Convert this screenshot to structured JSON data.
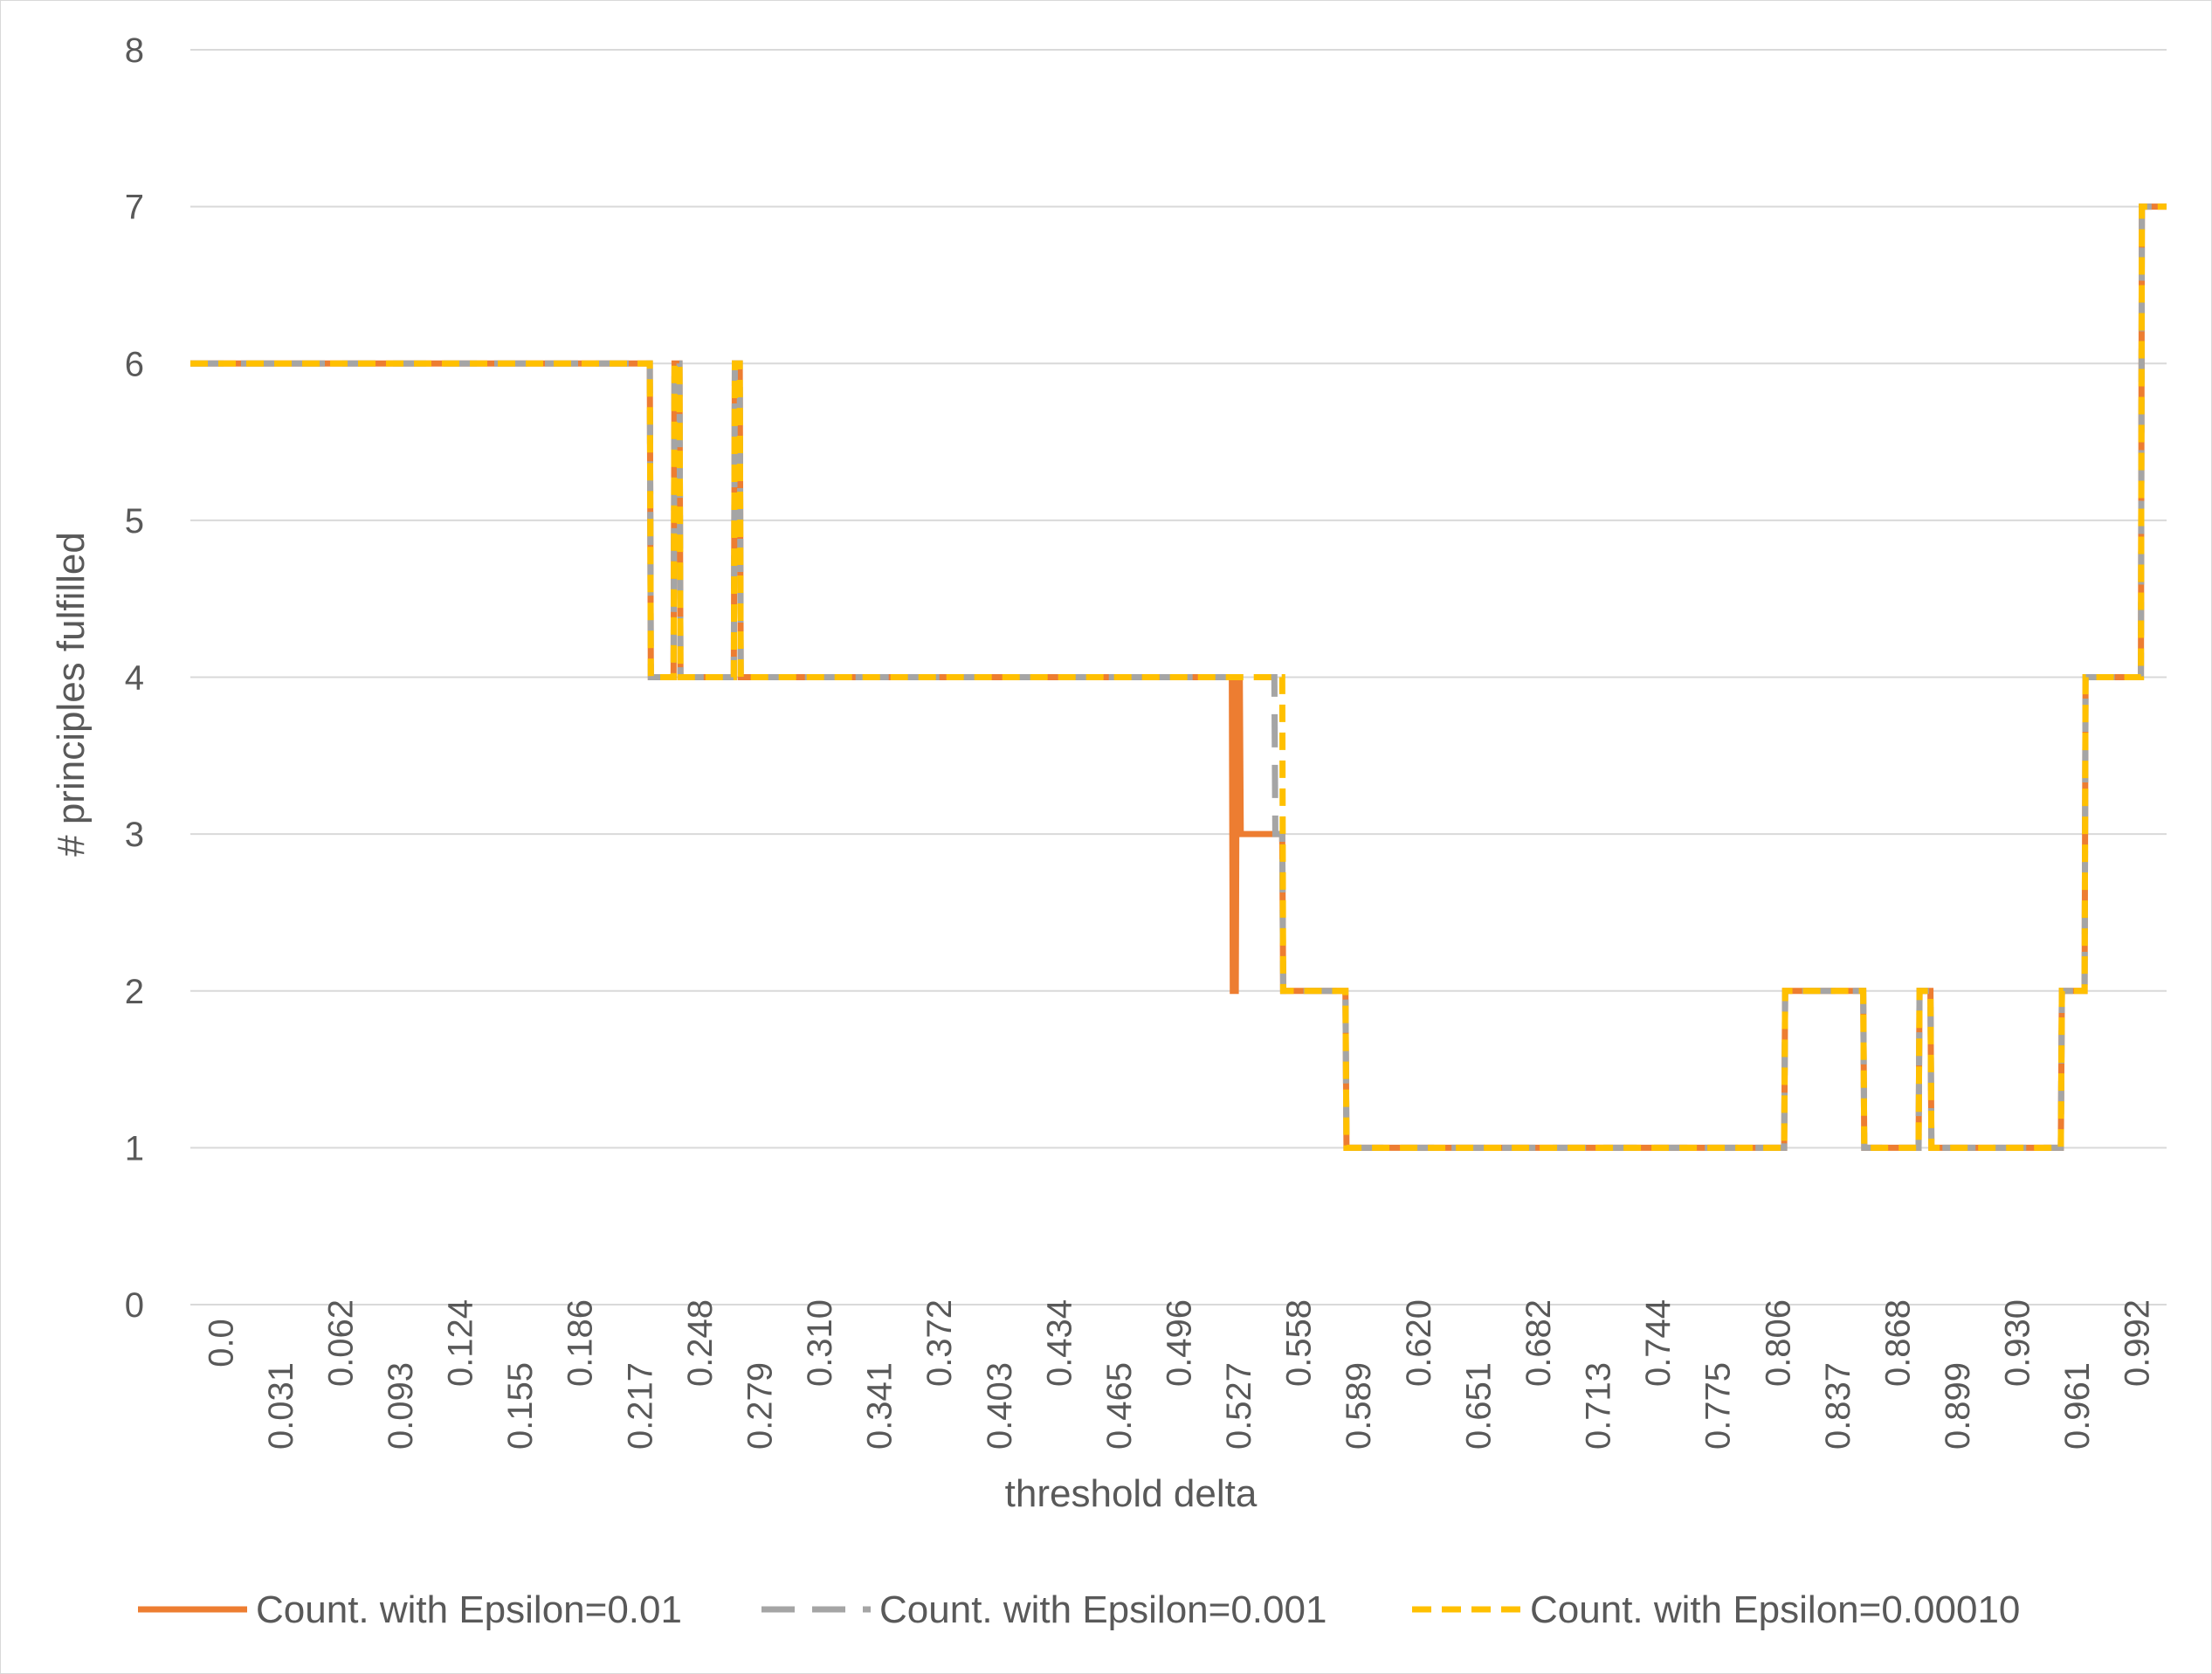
{
  "chart_data": {
    "type": "line",
    "title": "",
    "xlabel": "threshold delta",
    "ylabel": "# principles fulfilled",
    "ylim": [
      0,
      8
    ],
    "xlim": [
      0,
      1
    ],
    "yticks": [
      0,
      1,
      2,
      3,
      4,
      5,
      6,
      7,
      8
    ],
    "xticks": [
      "0.0",
      "0.031",
      "0.062",
      "0.093",
      "0.124",
      "0.155",
      "0.186",
      "0.217",
      "0.248",
      "0.279",
      "0.310",
      "0.341",
      "0.372",
      "0.403",
      "0.434",
      "0.465",
      "0.496",
      "0.527",
      "0.558",
      "0.589",
      "0.620",
      "0.651",
      "0.682",
      "0.713",
      "0.744",
      "0.775",
      "0.806",
      "0.837",
      "0.868",
      "0.899",
      "0.930",
      "0.961",
      "0.992"
    ],
    "grid": true,
    "legend_position": "bottom",
    "series": [
      {
        "name": "Count. with Epsilon=0.01",
        "color": "#ed7d31",
        "dash": "solid",
        "x": [
          0,
          0.2325,
          0.233,
          0.2445,
          0.245,
          0.2475,
          0.248,
          0.275,
          0.2755,
          0.278,
          0.2785,
          0.527,
          0.5275,
          0.529,
          0.5295,
          0.531,
          0.5315,
          0.5525,
          0.553,
          0.5845,
          0.585,
          0.8065,
          0.807,
          0.8465,
          0.847,
          0.8745,
          0.875,
          0.8805,
          0.881,
          0.9465,
          0.947,
          0.9585,
          0.959,
          0.987,
          0.9875,
          1.0
        ],
        "y": [
          6,
          6,
          4,
          4,
          6,
          6,
          4,
          4,
          6,
          6,
          4,
          4,
          2,
          2,
          4,
          4,
          3,
          3,
          2,
          2,
          1,
          1,
          2,
          2,
          1,
          1,
          2,
          2,
          1,
          1,
          2,
          2,
          4,
          4,
          7,
          7
        ]
      },
      {
        "name": "Count. with Epsilon=0.001",
        "color": "#a5a5a5",
        "dash": "long",
        "x": [
          0,
          0.2325,
          0.233,
          0.2445,
          0.245,
          0.2475,
          0.248,
          0.275,
          0.2755,
          0.278,
          0.2785,
          0.5485,
          0.549,
          0.5525,
          0.553,
          0.5845,
          0.585,
          0.8065,
          0.807,
          0.8465,
          0.847,
          0.8745,
          0.875,
          0.8805,
          0.881,
          0.9465,
          0.947,
          0.9585,
          0.959,
          0.987,
          0.9875,
          1.0
        ],
        "y": [
          6,
          6,
          4,
          4,
          6,
          6,
          4,
          4,
          6,
          6,
          4,
          4,
          3,
          3,
          2,
          2,
          1,
          1,
          2,
          2,
          1,
          1,
          2,
          2,
          1,
          1,
          2,
          2,
          4,
          4,
          7,
          7
        ]
      },
      {
        "name": "Count. with Epsilon=0.00010",
        "color": "#ffc000",
        "dash": "short",
        "x": [
          0,
          0.2325,
          0.233,
          0.2445,
          0.245,
          0.2475,
          0.248,
          0.275,
          0.2755,
          0.278,
          0.2785,
          0.5525,
          0.553,
          0.5845,
          0.585,
          0.8065,
          0.807,
          0.8465,
          0.847,
          0.8745,
          0.875,
          0.8805,
          0.881,
          0.9465,
          0.947,
          0.9585,
          0.959,
          0.987,
          0.9875,
          1.0
        ],
        "y": [
          6,
          6,
          4,
          4,
          6,
          6,
          4,
          4,
          6,
          6,
          4,
          4,
          2,
          2,
          1,
          1,
          2,
          2,
          1,
          1,
          2,
          2,
          1,
          1,
          2,
          2,
          4,
          4,
          7,
          7
        ]
      }
    ]
  }
}
